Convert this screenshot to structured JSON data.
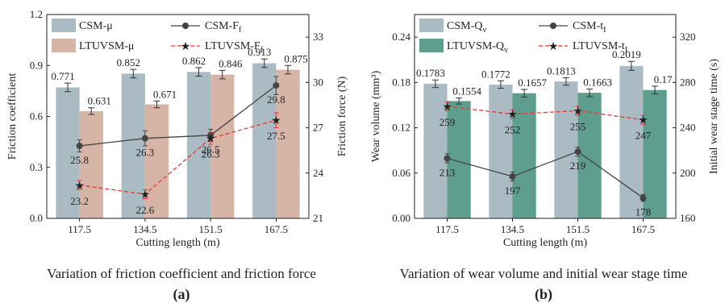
{
  "figure": {
    "caption_a": "Variation of friction coefficient and friction force",
    "caption_b": "Variation of wear volume and initial wear stage time",
    "tag_a": "(a)",
    "tag_b": "(b)"
  },
  "chart_data": [
    {
      "type": "bar",
      "xlabel": "Cutting length (m)",
      "ylabel": "Friction coefficient",
      "y2label": "Friction force (N)",
      "categories": [
        "117.5",
        "134.5",
        "151.5",
        "167.5"
      ],
      "ylim": [
        0.0,
        1.2
      ],
      "yticks": [
        "0.0",
        "0.3",
        "0.6",
        "0.9",
        "1.2"
      ],
      "y2lim": [
        21,
        34.5
      ],
      "y2ticks": [
        "21",
        "24",
        "27",
        "30",
        "33"
      ],
      "legend_placement": "top",
      "colors": {
        "bar1": "#aabbc4",
        "bar2": "#d6b5a6",
        "line1": "#444444",
        "line2": "#e53935"
      },
      "bar_series": [
        {
          "name": "CSM-μ",
          "values": [
            0.771,
            0.852,
            0.862,
            0.913
          ],
          "errors": [
            0.025,
            0.025,
            0.025,
            0.025
          ],
          "labels": [
            "0.771",
            "0.852",
            "0.862",
            "0.913"
          ]
        },
        {
          "name": "LTUVSM-μ",
          "values": [
            0.631,
            0.671,
            0.846,
            0.875
          ],
          "errors": [
            0.02,
            0.02,
            0.025,
            0.025
          ],
          "labels": [
            "0.631",
            "0.671",
            "0.846",
            "0.875"
          ]
        }
      ],
      "line_series": [
        {
          "name": "CSM-F",
          "subscript": "f",
          "values": [
            25.8,
            26.3,
            26.5,
            29.8
          ],
          "errors": [
            0.4,
            0.5,
            0.4,
            0.6
          ],
          "labels": [
            "25.8",
            "26.3",
            "26.5",
            "29.8"
          ]
        },
        {
          "name": "LTUVSM-F",
          "subscript": "f",
          "values": [
            23.2,
            22.6,
            26.3,
            27.5
          ],
          "errors": [
            0.3,
            0.3,
            0.4,
            0.5
          ],
          "labels": [
            "23.2",
            "22.6",
            "26.3",
            "27.5"
          ]
        }
      ]
    },
    {
      "type": "bar",
      "xlabel": "Cutting length (m)",
      "ylabel": "Wear volume (mm³)",
      "y2label": "Initial wear stage time (s)",
      "categories": [
        "117.5",
        "134.5",
        "151.5",
        "167.5"
      ],
      "ylim": [
        0.0,
        0.27
      ],
      "yticks": [
        "0.00",
        "0.06",
        "0.12",
        "0.18",
        "0.24"
      ],
      "y2lim": [
        160,
        340
      ],
      "y2ticks": [
        "160",
        "200",
        "240",
        "280",
        "320"
      ],
      "legend_placement": "top",
      "colors": {
        "bar1": "#aabbc4",
        "bar2": "#5e9e8e",
        "line1": "#444444",
        "line2": "#e53935"
      },
      "bar_series": [
        {
          "name": "CSM-Q",
          "subscript": "v",
          "values": [
            0.1783,
            0.1772,
            0.1813,
            0.2019
          ],
          "errors": [
            0.005,
            0.005,
            0.005,
            0.006
          ],
          "labels": [
            "0.1783",
            "0.1772",
            "0.1813",
            "0.2019"
          ]
        },
        {
          "name": "LTUVSM-Q",
          "subscript": "v",
          "values": [
            0.1554,
            0.1657,
            0.1663,
            0.17
          ],
          "errors": [
            0.004,
            0.005,
            0.005,
            0.005
          ],
          "labels": [
            "0.1554",
            "0.1657",
            "0.1663",
            "0.17"
          ]
        }
      ],
      "line_series": [
        {
          "name": "CSM-t",
          "subscript": "I",
          "values": [
            213,
            197,
            219,
            178
          ],
          "errors": [
            4,
            4,
            4,
            3
          ],
          "labels": [
            "213",
            "197",
            "219",
            "178"
          ]
        },
        {
          "name": "LTUVSM-t",
          "subscript": "I",
          "values": [
            259,
            252,
            255,
            247
          ],
          "errors": [
            4,
            4,
            4,
            4
          ],
          "labels": [
            "259",
            "252",
            "255",
            "247"
          ]
        }
      ]
    }
  ]
}
